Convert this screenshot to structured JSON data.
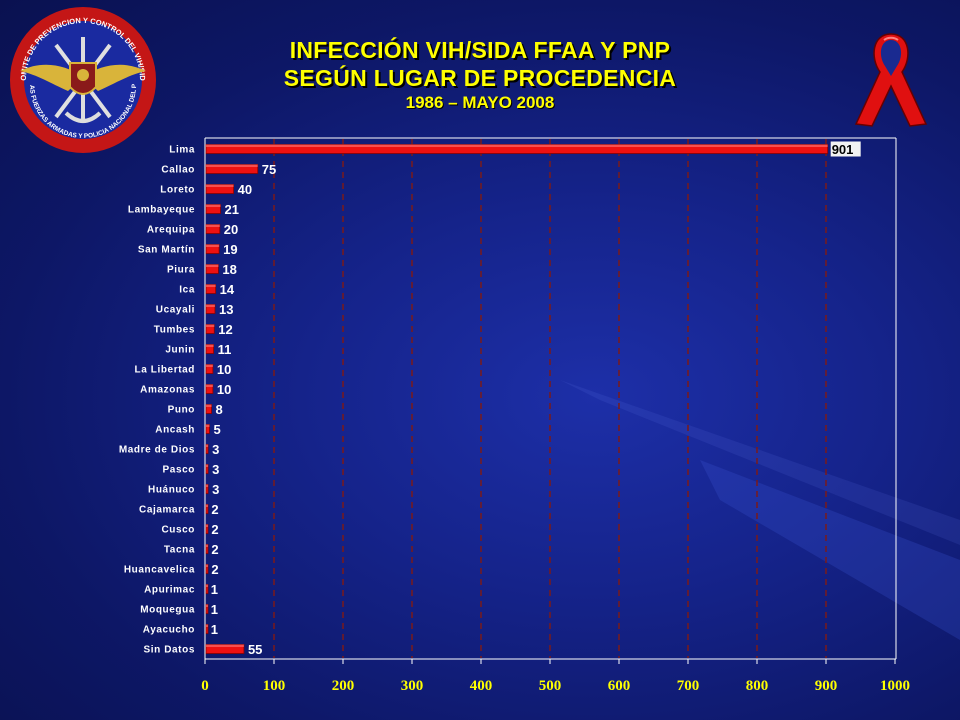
{
  "header": {
    "title_line1": "INFECCIÓN VIH/SIDA  FFAA Y PNP",
    "title_line2": "SEGÚN LUGAR DE PROCEDENCIA",
    "subtitle": "1986 – MAYO 2008"
  },
  "emblem": {
    "icon": "military-police-emblem-icon",
    "ring_text_top": "COMITE DE PREVENCION Y CONTROL DEL VIH/SIDA",
    "ring_text_bottom": "DE LAS FUERZAS ARMADAS Y POLICIA NACIONAL DEL PERU"
  },
  "ribbon": {
    "icon": "red-ribbon-icon",
    "color": "#e01010"
  },
  "colors": {
    "bar": "#ee1111",
    "bar_dark": "#8a0000",
    "title": "#ffff00",
    "grid": "#7a1a1a",
    "background": "#15238a"
  },
  "chart_data": {
    "type": "bar",
    "orientation": "horizontal",
    "categories": [
      "Lima",
      "Callao",
      "Loreto",
      "Lambayeque",
      "Arequipa",
      "San Martín",
      "Piura",
      "Ica",
      "Ucayali",
      "Tumbes",
      "Junin",
      "La Libertad",
      "Amazonas",
      "Puno",
      "Ancash",
      "Madre de Dios",
      "Pasco",
      "Huánuco",
      "Cajamarca",
      "Cusco",
      "Tacna",
      "Huancavelica",
      "Apurimac",
      "Moquegua",
      "Ayacucho",
      "Sin Datos"
    ],
    "values": [
      901,
      75,
      40,
      21,
      20,
      19,
      18,
      14,
      13,
      12,
      11,
      10,
      10,
      8,
      5,
      3,
      3,
      3,
      2,
      2,
      2,
      2,
      1,
      1,
      1,
      55
    ],
    "value_labels": [
      "901",
      "75",
      "40",
      "21",
      "20",
      "19",
      "18",
      "14",
      "13",
      "12",
      "11",
      "10",
      "10",
      "8",
      "5",
      "3",
      "3",
      "3",
      "2",
      "2",
      "2",
      "2",
      "1",
      "1",
      "1",
      "55"
    ],
    "xticks": [
      "0",
      "100",
      "200",
      "300",
      "400",
      "500",
      "600",
      "700",
      "800",
      "900",
      "1000"
    ],
    "xlim": [
      0,
      1000
    ],
    "grid": "vertical dashed",
    "legend": "none"
  }
}
